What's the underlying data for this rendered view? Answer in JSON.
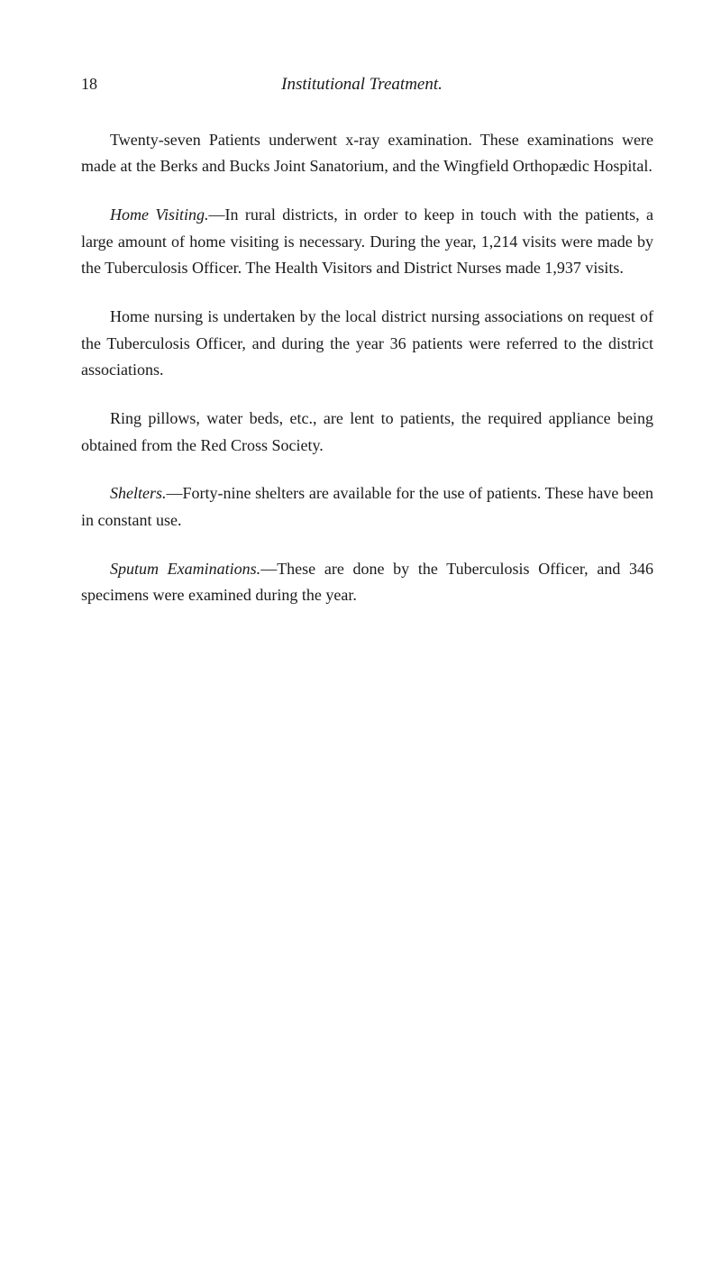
{
  "header": {
    "page_number": "18",
    "title": "Institutional Treatment."
  },
  "paragraphs": {
    "p1": "Twenty-seven Patients underwent x-ray examination. These examinations were made at the Berks and Bucks Joint Sanatorium, and the Wingfield Orthopædic Hospital.",
    "p2_label": "Home Visiting.",
    "p2_text": "—In rural districts, in order to keep in touch with the patients, a large amount of home visiting is necessary. During the year, 1,214 visits were made by the Tuberculosis Officer. The Health Visitors and District Nurses made 1,937 visits.",
    "p3": "Home nursing is undertaken by the local district nursing associations on request of the Tuberculosis Officer, and during the year 36 patients were referred to the district associations.",
    "p4": "Ring pillows, water beds, etc., are lent to patients, the required appliance being obtained from the Red Cross Society.",
    "p5_label": "Shelters.",
    "p5_text": "—Forty-nine shelters are available for the use of patients. These have been in constant use.",
    "p6_label": "Sputum Examinations.",
    "p6_text": "—These are done by the Tuberculosis Officer, and 346 specimens were examined during the year."
  }
}
